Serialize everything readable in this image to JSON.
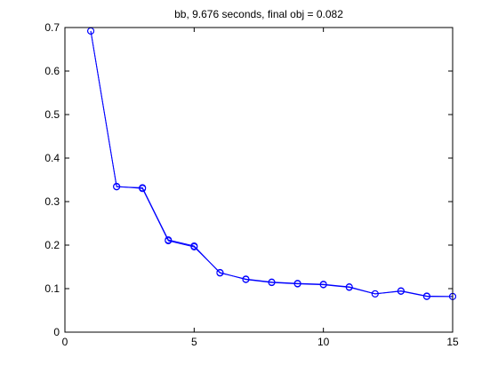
{
  "chart_data": {
    "type": "line",
    "title": "bb, 9.676 seconds, final obj = 0.082",
    "xlabel": "",
    "ylabel": "",
    "xlim": [
      0,
      15
    ],
    "ylim": [
      0,
      0.7
    ],
    "x_ticks": [
      0,
      5,
      10,
      15
    ],
    "y_ticks": [
      0,
      0.1,
      0.2,
      0.3,
      0.4,
      0.5,
      0.6,
      0.7
    ],
    "x_tick_labels": [
      "0",
      "5",
      "10",
      "15"
    ],
    "y_tick_labels": [
      "0",
      "0.1",
      "0.2",
      "0.3",
      "0.4",
      "0.5",
      "0.6",
      "0.7"
    ],
    "grid": false,
    "legend": false,
    "marker": "circle",
    "line_color": "#0000ff",
    "series": [
      {
        "x": [
          1,
          2,
          3,
          4,
          5,
          6,
          7,
          8,
          9,
          10,
          11,
          12,
          13,
          14,
          15
        ],
        "y": [
          0.692,
          0.334,
          0.332,
          0.212,
          0.198,
          0.136,
          0.122,
          0.115,
          0.112,
          0.11,
          0.104,
          0.088,
          0.095,
          0.083,
          0.082
        ]
      },
      {
        "x": [
          1,
          2,
          3,
          4,
          5,
          6,
          7,
          8,
          9,
          10,
          11,
          12,
          13,
          14,
          15
        ],
        "y": [
          0.692,
          0.335,
          0.33,
          0.21,
          0.196,
          0.137,
          0.121,
          0.114,
          0.111,
          0.109,
          0.103,
          0.088,
          0.094,
          0.082,
          0.082
        ]
      }
    ]
  }
}
